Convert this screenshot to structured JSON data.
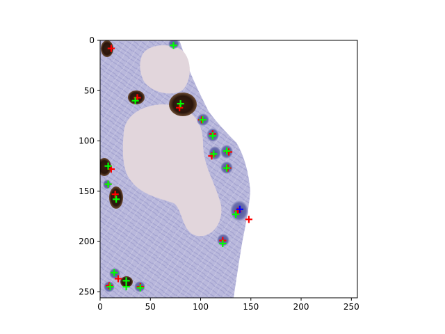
{
  "chart_data": {
    "type": "scatter",
    "title": "",
    "xlabel": "",
    "ylabel": "",
    "xlim": [
      0,
      256
    ],
    "ylim": [
      256,
      0
    ],
    "y_inverted": true,
    "grid": false,
    "legend": "none",
    "background": "microscopy image of stained tissue (purple cells, brown nuclei, pale vessels, white empty area at right)",
    "xticks": [
      0,
      50,
      100,
      150,
      200,
      250
    ],
    "yticks": [
      0,
      50,
      100,
      150,
      200,
      250
    ],
    "series": [
      {
        "color": "#ff0000",
        "marker": "plus",
        "points": [
          [
            11,
            8
          ],
          [
            37,
            57
          ],
          [
            79,
            67
          ],
          [
            101,
            79
          ],
          [
            112,
            93
          ],
          [
            111,
            115
          ],
          [
            128,
            111
          ],
          [
            127,
            127
          ],
          [
            11,
            128
          ],
          [
            8,
            143
          ],
          [
            15,
            153
          ],
          [
            137,
            170
          ],
          [
            148,
            178
          ],
          [
            122,
            199
          ],
          [
            9,
            244
          ],
          [
            18,
            237
          ],
          [
            40,
            245
          ]
        ]
      },
      {
        "color": "#00ff00",
        "marker": "plus",
        "points": [
          [
            73,
            5
          ],
          [
            35,
            60
          ],
          [
            80,
            63
          ],
          [
            102,
            79
          ],
          [
            112,
            95
          ],
          [
            113,
            113
          ],
          [
            126,
            110
          ],
          [
            126,
            127
          ],
          [
            8,
            125
          ],
          [
            8,
            143
          ],
          [
            16,
            158
          ],
          [
            135,
            173
          ],
          [
            122,
            202
          ],
          [
            14,
            231
          ],
          [
            26,
            239
          ],
          [
            26,
            245
          ],
          [
            10,
            245
          ],
          [
            40,
            246
          ]
        ]
      },
      {
        "color": "#0000ff",
        "marker": "plus",
        "points": [
          [
            139,
            168
          ]
        ]
      }
    ]
  }
}
